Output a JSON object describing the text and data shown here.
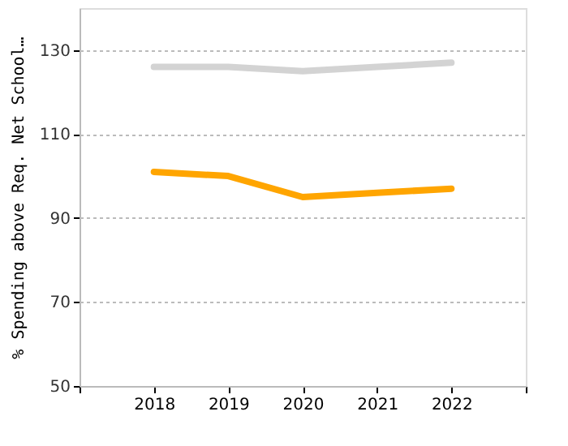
{
  "chart_data": {
    "type": "line",
    "ylabel": "% Spending above Req. Net School…",
    "x": [
      2018,
      2019,
      2020,
      2021,
      2022
    ],
    "series": [
      {
        "color": "#d3d3d3",
        "values": [
          126,
          126,
          125,
          126,
          127
        ]
      },
      {
        "color": "#ffa500",
        "values": [
          101,
          100,
          95,
          96,
          97
        ]
      }
    ],
    "xlim": [
      2017,
      2023
    ],
    "xticks": [
      {
        "value": 2017,
        "label": null
      },
      2018,
      2019,
      2020,
      2021,
      2022,
      {
        "value": 2023,
        "label": null
      }
    ],
    "ylim": [
      50,
      140
    ],
    "yticks": [
      50,
      70,
      90,
      110,
      130
    ],
    "grid": "y",
    "legend": false,
    "marker": "none",
    "line_style": "solid"
  }
}
